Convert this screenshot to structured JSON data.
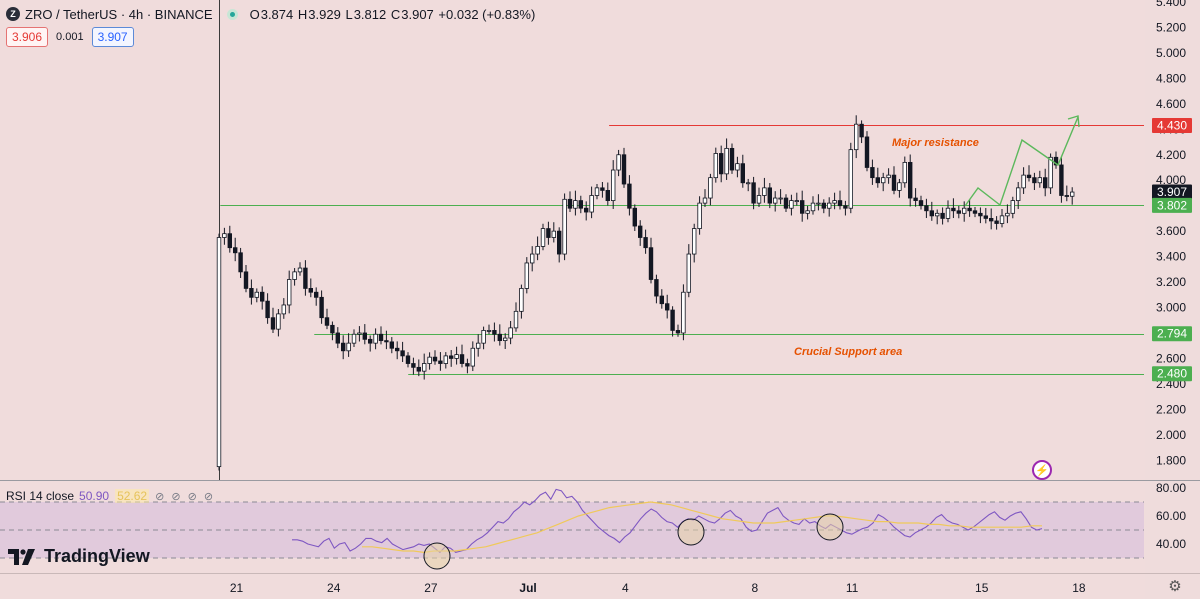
{
  "header": {
    "logo_letter": "Z",
    "title": "ZRO / TetherUS · 4h · BINANCE",
    "ohlc": [
      {
        "k": "O",
        "v": "3.874"
      },
      {
        "k": "H",
        "v": "3.929"
      },
      {
        "k": "L",
        "v": "3.812"
      },
      {
        "k": "C",
        "v": "3.907"
      }
    ],
    "change": "+0.032 (+0.83%)",
    "sell_price": "3.906",
    "spread": "0.001",
    "buy_price": "3.907"
  },
  "rsi_legend": {
    "label": "RSI 14 close",
    "value": "50.90",
    "ma_value": "52.62",
    "icons": "⊘ ⊘ ⊘ ⊘"
  },
  "branding": {
    "name": "TradingView"
  },
  "icons": {
    "bolt": "lightning-icon",
    "settings": "gear-icon"
  },
  "colors": {
    "background": "#f0dcdc",
    "up": "#ffffff",
    "down": "#131722",
    "resistance": "#e53935",
    "support": "#4caf50",
    "rsi_line": "#7e57c2",
    "rsi_ma": "#f0c95a",
    "annotation": "#e65100"
  },
  "annotations": {
    "resistance_text": "Major resistance",
    "support_text": "Crucial Support area"
  },
  "chart_data": {
    "type": "candlestick",
    "symbol": "ZRO/USDT",
    "timeframe": "4h",
    "y_ticks": [
      "5.400",
      "5.200",
      "5.000",
      "4.800",
      "4.600",
      "4.400",
      "4.200",
      "4.000",
      "3.800",
      "3.600",
      "3.400",
      "3.200",
      "3.000",
      "2.800",
      "2.600",
      "2.400",
      "2.200",
      "2.000",
      "1.800"
    ],
    "ylim": [
      1.7,
      5.4
    ],
    "x_ticks": [
      "21",
      "24",
      "27",
      "Jul",
      "4",
      "8",
      "11",
      "15",
      "18"
    ],
    "price_labels": [
      {
        "value": "4.430",
        "kind": "resistance"
      },
      {
        "value": "3.907",
        "kind": "current"
      },
      {
        "value": "3.802",
        "kind": "support"
      },
      {
        "value": "2.794",
        "kind": "support"
      },
      {
        "value": "2.480",
        "kind": "support"
      }
    ],
    "levels": [
      {
        "price": 4.43,
        "from_day": 32.5
      },
      {
        "price": 3.802,
        "from_day": 20.5
      },
      {
        "price": 2.794,
        "from_day": 23.4
      },
      {
        "price": 2.48,
        "from_day": 26.3
      }
    ],
    "closes": [
      3.55,
      3.58,
      3.47,
      3.43,
      3.28,
      3.15,
      3.08,
      3.12,
      3.05,
      2.92,
      2.83,
      2.95,
      3.02,
      3.22,
      3.28,
      3.31,
      3.15,
      3.12,
      3.08,
      2.92,
      2.86,
      2.8,
      2.72,
      2.66,
      2.72,
      2.79,
      2.8,
      2.75,
      2.72,
      2.79,
      2.74,
      2.73,
      2.68,
      2.66,
      2.62,
      2.56,
      2.53,
      2.5,
      2.56,
      2.61,
      2.58,
      2.56,
      2.62,
      2.6,
      2.63,
      2.56,
      2.54,
      2.68,
      2.72,
      2.82,
      2.82,
      2.79,
      2.74,
      2.76,
      2.84,
      2.97,
      3.15,
      3.35,
      3.42,
      3.48,
      3.62,
      3.55,
      3.6,
      3.42,
      3.85,
      3.78,
      3.84,
      3.78,
      3.75,
      3.88,
      3.94,
      3.92,
      3.84,
      4.08,
      4.2,
      3.97,
      3.78,
      3.64,
      3.55,
      3.47,
      3.22,
      3.09,
      3.03,
      2.98,
      2.82,
      2.8,
      3.12,
      3.42,
      3.62,
      3.82,
      3.86,
      4.02,
      4.21,
      4.05,
      4.25,
      4.08,
      4.13,
      3.98,
      3.98,
      3.82,
      3.88,
      3.94,
      3.82,
      3.86,
      3.86,
      3.78,
      3.84,
      3.84,
      3.74,
      3.76,
      3.82,
      3.82,
      3.78,
      3.82,
      3.84,
      3.8,
      3.78,
      4.24,
      4.44,
      4.34,
      4.1,
      4.02,
      3.98,
      4.02,
      4.04,
      3.92,
      3.98,
      4.14,
      3.86,
      3.84,
      3.8,
      3.76,
      3.72,
      3.74,
      3.7,
      3.78,
      3.76,
      3.74,
      3.78,
      3.76,
      3.74,
      3.72,
      3.7,
      3.68,
      3.66,
      3.72,
      3.74,
      3.84,
      3.94,
      4.04,
      4.02,
      3.98,
      4.02,
      3.94,
      4.18,
      4.12,
      3.88,
      3.874,
      3.907
    ],
    "rsi_ticks": [
      "80.00",
      "60.00",
      "40.00"
    ],
    "rsi_bands": [
      70,
      50,
      30
    ],
    "rsi_values": [
      43,
      43,
      42,
      40,
      39,
      38,
      42,
      44,
      37,
      40,
      41,
      35,
      37,
      40,
      44,
      44,
      42,
      41,
      44,
      40,
      38,
      36,
      37,
      38,
      40,
      39,
      40,
      37,
      34,
      38,
      37,
      34,
      35,
      36,
      40,
      43,
      45,
      48,
      52,
      56,
      55,
      58,
      63,
      66,
      70,
      68,
      71,
      75,
      77,
      72,
      79,
      78,
      73,
      74,
      70,
      64,
      60,
      56,
      52,
      49,
      46,
      44,
      41,
      45,
      48,
      53,
      58,
      62,
      65,
      63,
      59,
      56,
      55,
      52,
      56,
      58,
      57,
      60,
      58,
      56,
      55,
      58,
      62,
      64,
      60,
      58,
      52,
      49,
      50,
      56,
      62,
      64,
      66,
      60,
      57,
      55,
      54,
      58,
      55,
      56,
      53,
      51,
      54,
      52,
      50,
      48,
      47,
      49,
      51,
      52,
      55,
      61,
      59,
      56,
      52,
      49,
      46,
      45,
      48,
      50,
      52,
      55,
      59,
      61,
      57,
      55,
      54,
      52,
      50,
      52,
      55,
      58,
      61,
      63,
      59,
      57,
      60,
      62,
      63,
      58,
      52,
      50,
      51
    ],
    "rsi_ma_values": [
      38,
      38,
      37,
      36,
      35,
      35,
      34,
      35,
      35,
      35,
      36,
      37,
      38,
      40,
      42,
      44,
      46,
      48,
      51,
      54,
      57,
      60,
      62,
      64,
      66,
      67,
      68,
      69,
      70,
      69,
      68,
      66,
      64,
      62,
      60,
      58,
      57,
      56,
      55,
      55,
      55,
      56,
      57,
      58,
      59,
      60,
      60,
      59,
      58,
      57,
      56,
      56,
      55,
      55,
      55,
      54,
      54,
      53,
      53,
      52,
      52,
      52,
      52,
      52,
      52,
      53,
      53
    ],
    "rsi_ylim": [
      20,
      85
    ]
  }
}
